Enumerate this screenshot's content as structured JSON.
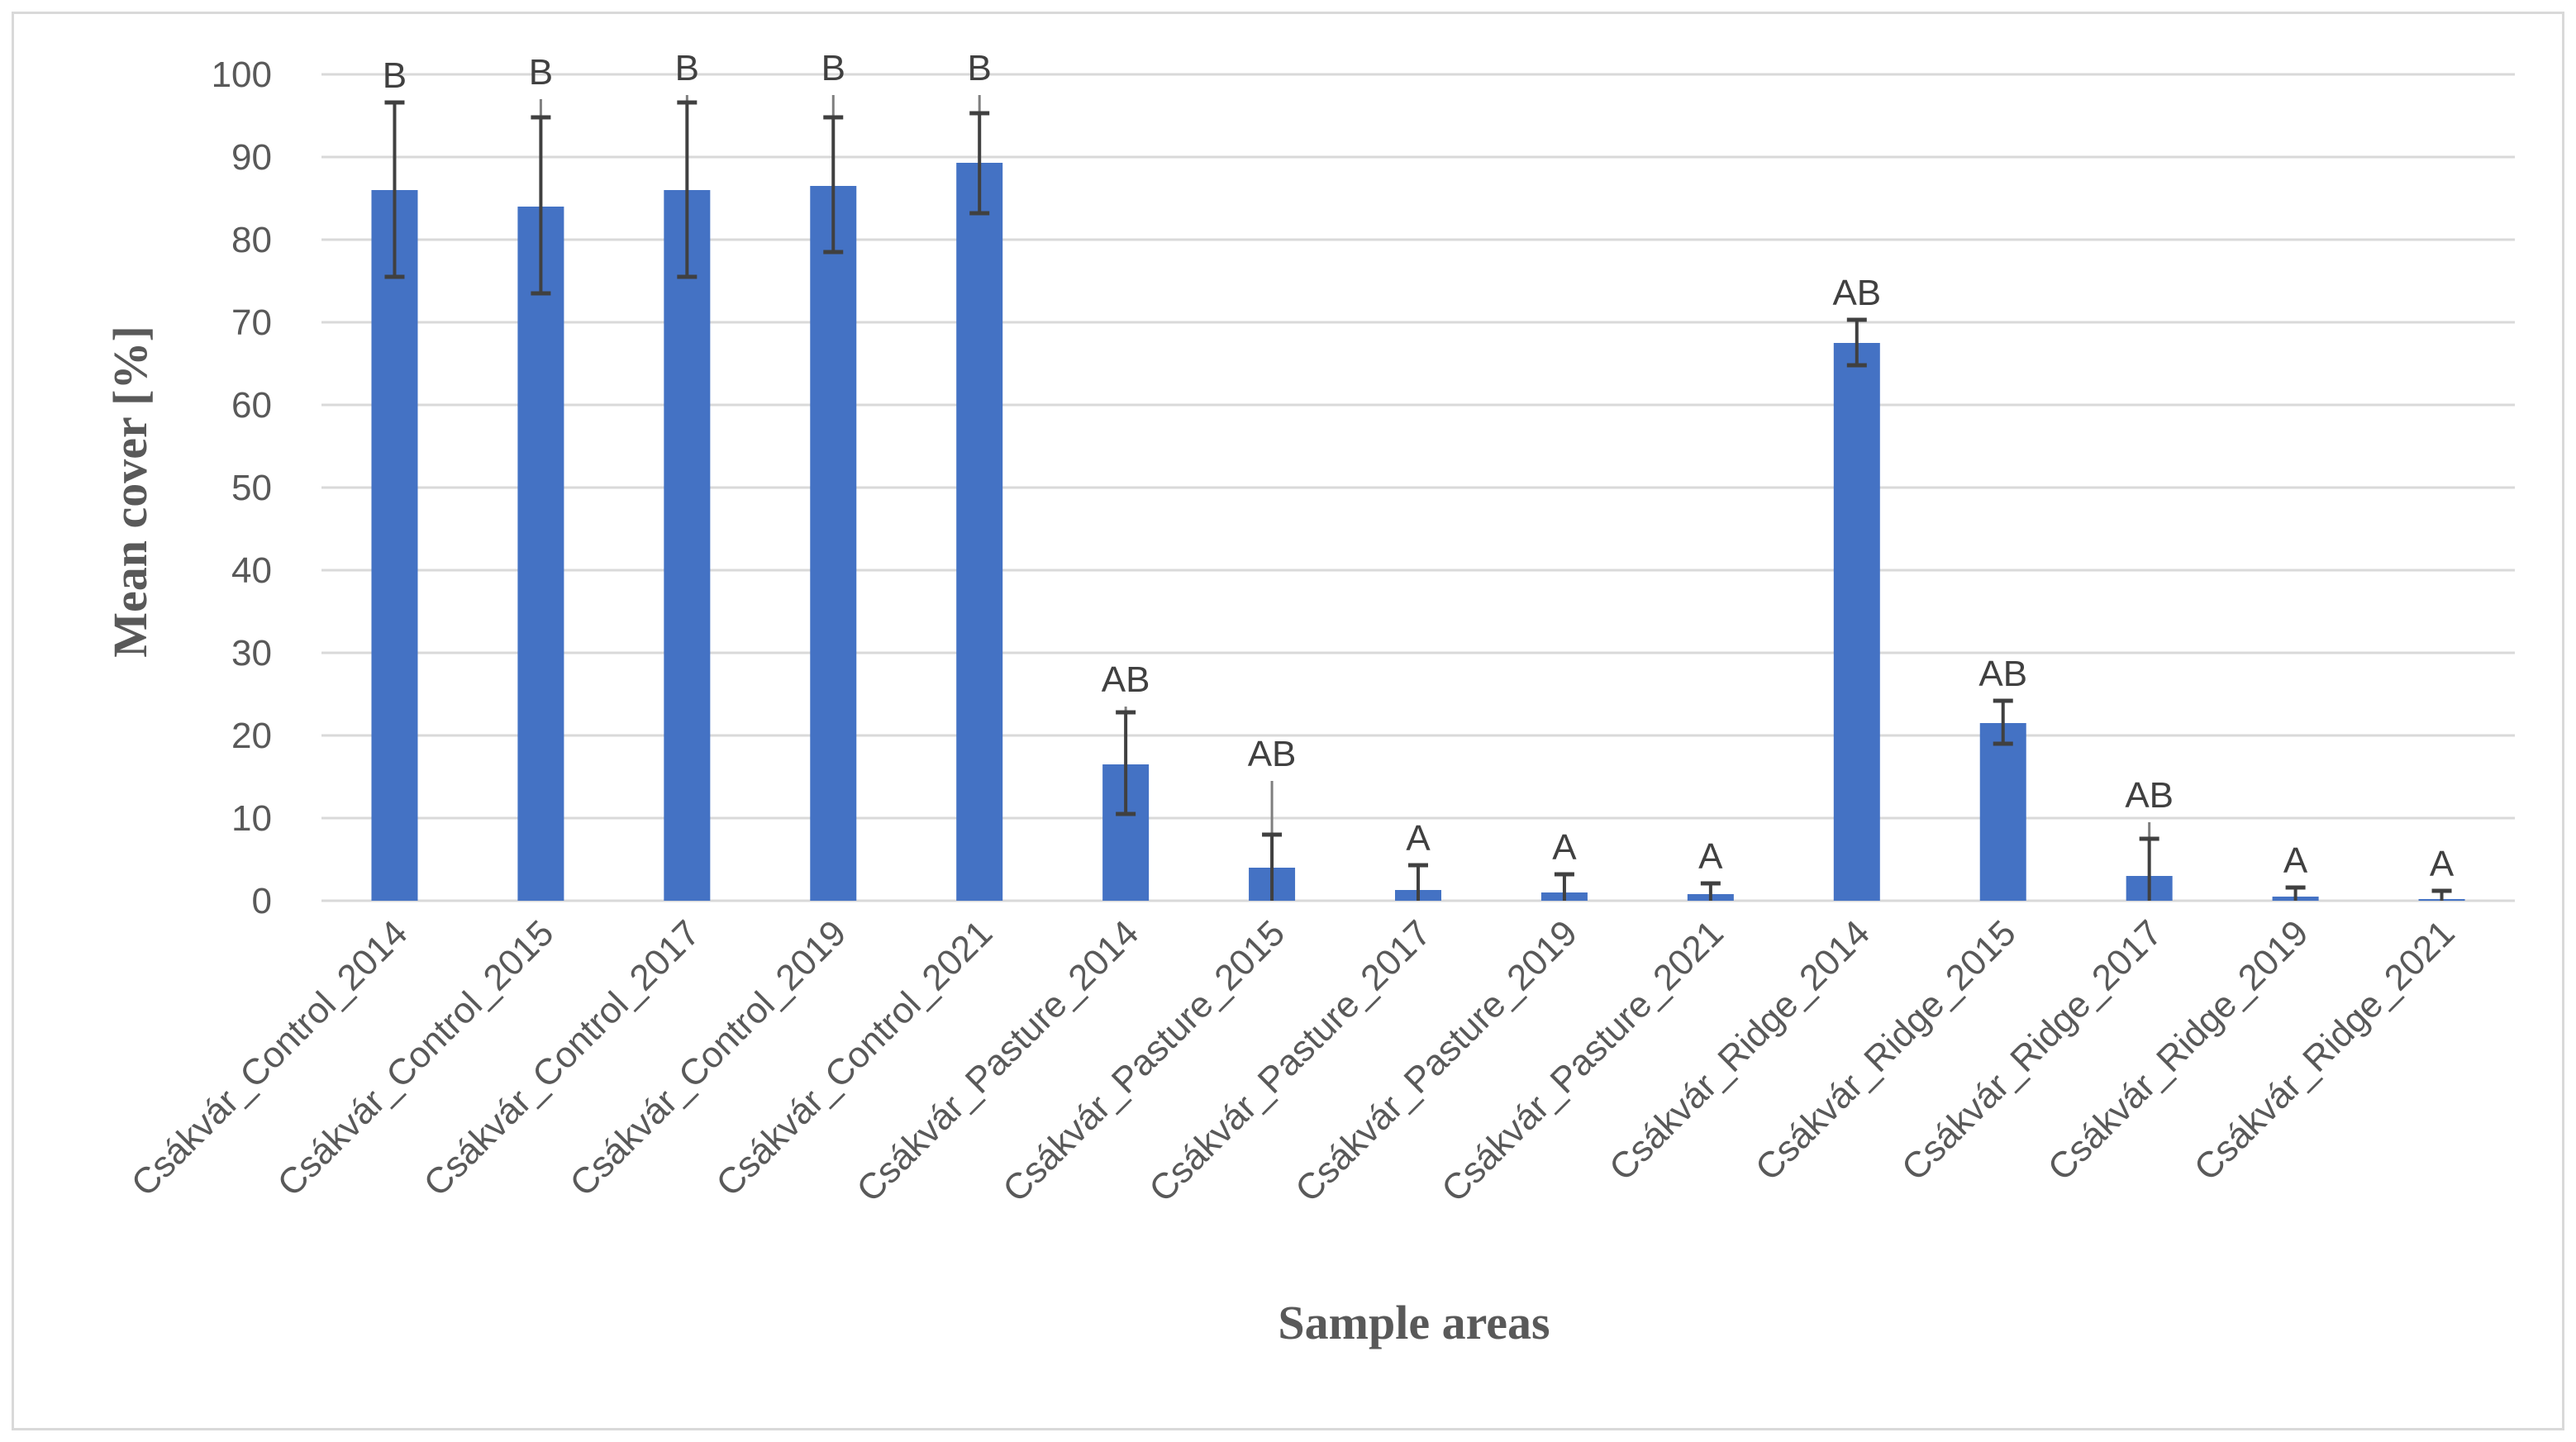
{
  "chart_data": {
    "type": "bar",
    "title": "",
    "xlabel": "Sample areas",
    "ylabel": "Mean cover [%]",
    "ylim": [
      0,
      100
    ],
    "yticks": [
      0,
      10,
      20,
      30,
      40,
      50,
      60,
      70,
      80,
      90,
      100
    ],
    "grid": true,
    "legend": "none",
    "bar_color": "#4472c4",
    "grid_color": "#d9d9d9",
    "error_bar_color": "#404040",
    "categories": [
      "Csákvár_Control_2014",
      "Csákvár_Control_2015",
      "Csákvár_Control_2017",
      "Csákvár_Control_2019",
      "Csákvár_Control_2021",
      "Csákvár_Pasture_2014",
      "Csákvár_Pasture_2015",
      "Csákvár_Pasture_2017",
      "Csákvár_Pasture_2019",
      "Csákvár_Pasture_2021",
      "Csákvár_Ridge_2014",
      "Csákvár_Ridge_2015",
      "Csákvár_Ridge_2017",
      "Csákvár_Ridge_2019",
      "Csákvár_Ridge_2021"
    ],
    "values": [
      86,
      84,
      86,
      86.5,
      89.3,
      16.5,
      4,
      1.3,
      1,
      0.8,
      67.5,
      21.5,
      3,
      0.5,
      0.2
    ],
    "error_low": [
      75.5,
      73.5,
      75.5,
      78.5,
      83.2,
      10.5,
      0,
      0,
      0,
      0,
      64.8,
      19,
      0,
      0,
      0
    ],
    "error_high": [
      96.6,
      94.8,
      96.6,
      94.8,
      95.3,
      22.8,
      8,
      4.3,
      3.2,
      2.1,
      70.3,
      24.2,
      7.5,
      1.6,
      1.2
    ],
    "whisker_extent": [
      96.6,
      97,
      97.5,
      97.5,
      97.5,
      23.5,
      14.5,
      4.3,
      3.2,
      2.1,
      70.3,
      24.2,
      9.5,
      1.6,
      1.2
    ],
    "significance_labels": [
      "B",
      "B",
      "B",
      "B",
      "B",
      "AB",
      "AB",
      "A",
      "A",
      "A",
      "AB",
      "AB",
      "AB",
      "A",
      "A"
    ]
  }
}
